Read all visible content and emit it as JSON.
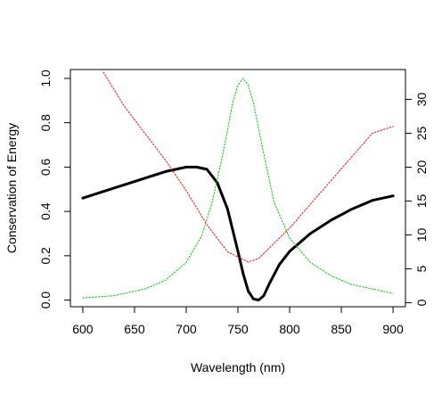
{
  "chart_data": {
    "type": "line",
    "title": "",
    "xlabel": "Wavelength (nm)",
    "ylabel": "Conservation of Energy",
    "y2label": "",
    "xlim": [
      588,
      912
    ],
    "ylim": [
      -0.03,
      1.04
    ],
    "y2lim": [
      -0.6,
      34.4
    ],
    "x_ticks": [
      600,
      650,
      700,
      750,
      800,
      850,
      900
    ],
    "y_ticks": [
      0.0,
      0.2,
      0.4,
      0.6,
      0.8,
      1.0
    ],
    "y_tick_labels": [
      "0.0",
      "0.2",
      "0.4",
      "0.6",
      "0.8",
      "1.0"
    ],
    "y2_ticks": [
      0,
      5,
      10,
      15,
      20,
      25,
      30
    ],
    "grid": false,
    "legend": "none",
    "series": [
      {
        "style": "solid",
        "color": "#000000",
        "axis": "left",
        "x": [
          600,
          620,
          640,
          660,
          680,
          700,
          710,
          720,
          730,
          740,
          750,
          755,
          760,
          765,
          770,
          775,
          780,
          790,
          800,
          820,
          840,
          860,
          880,
          900
        ],
        "y": [
          0.46,
          0.49,
          0.52,
          0.55,
          0.58,
          0.6,
          0.6,
          0.59,
          0.53,
          0.41,
          0.22,
          0.12,
          0.04,
          0.005,
          0.0,
          0.02,
          0.07,
          0.16,
          0.22,
          0.3,
          0.36,
          0.41,
          0.45,
          0.47
        ]
      },
      {
        "style": "dotted",
        "color": "#00cc00",
        "axis": "left",
        "x": [
          600,
          630,
          660,
          680,
          700,
          715,
          725,
          735,
          745,
          750,
          755,
          760,
          765,
          775,
          785,
          800,
          820,
          840,
          860,
          880,
          900
        ],
        "y": [
          0.01,
          0.02,
          0.05,
          0.09,
          0.17,
          0.29,
          0.44,
          0.65,
          0.89,
          0.97,
          1.0,
          0.97,
          0.89,
          0.66,
          0.44,
          0.28,
          0.17,
          0.11,
          0.07,
          0.05,
          0.03
        ]
      },
      {
        "style": "dotted",
        "color": "#ff0000",
        "axis": "right",
        "x": [
          620,
          640,
          660,
          680,
          700,
          720,
          740,
          760,
          770,
          780,
          800,
          820,
          840,
          860,
          880,
          900
        ],
        "y": [
          34.0,
          29.0,
          25.0,
          21.0,
          16.5,
          11.5,
          7.5,
          6.0,
          6.5,
          8.0,
          11.0,
          14.5,
          18.0,
          21.5,
          25.0,
          26.0
        ]
      }
    ]
  }
}
